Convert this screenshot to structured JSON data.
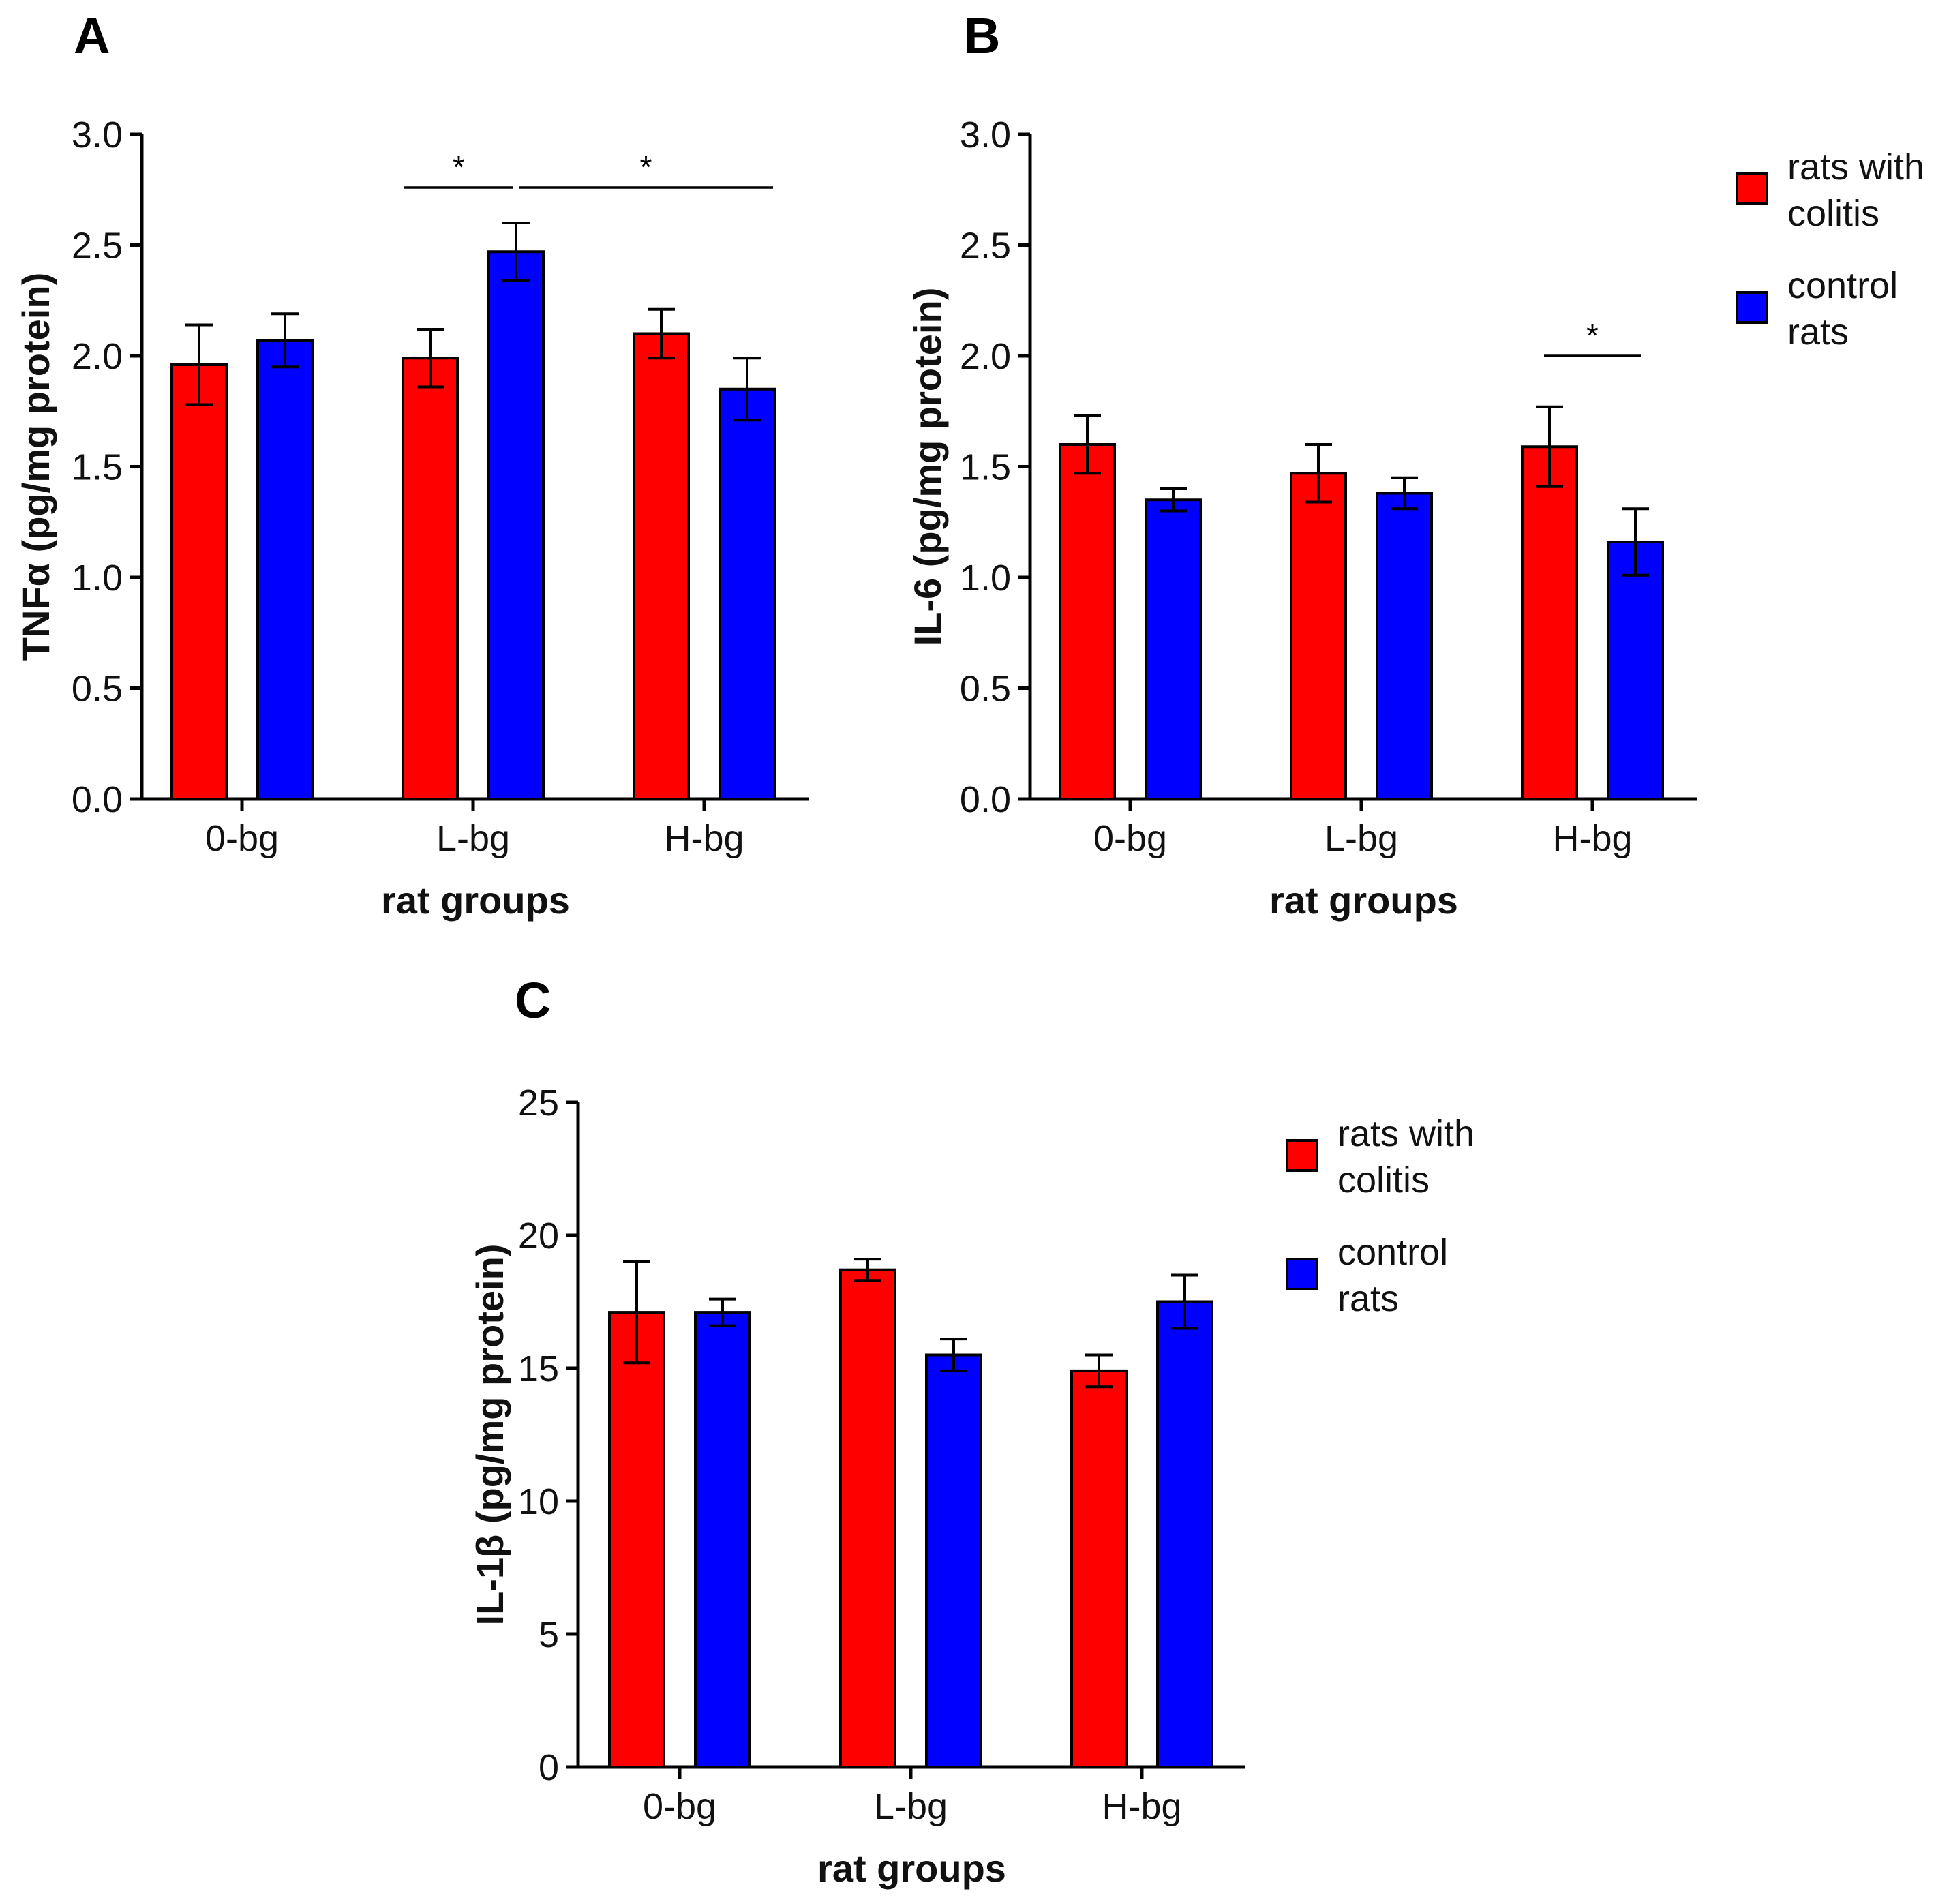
{
  "chart_data": [
    {
      "type": "bar",
      "panel": "A",
      "ylabel": "TNFα (pg/mg protein)",
      "xlabel": "rat groups",
      "ylim": [
        0,
        3.0
      ],
      "yticks": [
        "0.0",
        "0.5",
        "1.0",
        "1.5",
        "2.0",
        "2.5",
        "3.0"
      ],
      "categories": [
        "0-bg",
        "L-bg",
        "H-bg"
      ],
      "series": [
        {
          "name": "rats with colitis",
          "color": "#ff0000",
          "values": [
            1.96,
            1.99,
            2.1
          ],
          "errors": [
            0.18,
            0.13,
            0.11
          ]
        },
        {
          "name": "control rats",
          "color": "#0000ff",
          "values": [
            2.07,
            2.47,
            1.85
          ],
          "errors": [
            0.12,
            0.13,
            0.14
          ]
        }
      ],
      "significance": [
        {
          "from": [
            1,
            0
          ],
          "to": [
            1,
            1
          ],
          "y": 2.76,
          "label": "*"
        },
        {
          "from": [
            1,
            1
          ],
          "to": [
            2,
            1
          ],
          "y": 2.76,
          "label": "*"
        }
      ],
      "legend": false
    },
    {
      "type": "bar",
      "panel": "B",
      "ylabel": "IL-6 (pg/mg protein)",
      "xlabel": "rat groups",
      "ylim": [
        0,
        3.0
      ],
      "yticks": [
        "0.0",
        "0.5",
        "1.0",
        "1.5",
        "2.0",
        "2.5",
        "3.0"
      ],
      "categories": [
        "0-bg",
        "L-bg",
        "H-bg"
      ],
      "series": [
        {
          "name": "rats with colitis",
          "color": "#ff0000",
          "values": [
            1.6,
            1.47,
            1.59
          ],
          "errors": [
            0.13,
            0.13,
            0.18
          ]
        },
        {
          "name": "control rats",
          "color": "#0000ff",
          "values": [
            1.35,
            1.38,
            1.16
          ],
          "errors": [
            0.05,
            0.07,
            0.15
          ]
        }
      ],
      "significance": [
        {
          "from": [
            2,
            0
          ],
          "to": [
            2,
            1
          ],
          "y": 2.0,
          "label": "*"
        }
      ],
      "legend": true
    },
    {
      "type": "bar",
      "panel": "C",
      "ylabel": "IL-1β (pg/mg protein)",
      "xlabel": "rat groups",
      "ylim": [
        0,
        25
      ],
      "yticks": [
        "0",
        "5",
        "10",
        "15",
        "20",
        "25"
      ],
      "categories": [
        "0-bg",
        "L-bg",
        "H-bg"
      ],
      "series": [
        {
          "name": "rats with colitis",
          "color": "#ff0000",
          "values": [
            17.1,
            18.7,
            14.9
          ],
          "errors": [
            1.9,
            0.4,
            0.6
          ]
        },
        {
          "name": "control rats",
          "color": "#0000ff",
          "values": [
            17.1,
            15.5,
            17.5
          ],
          "errors": [
            0.5,
            0.6,
            1.0
          ]
        }
      ],
      "significance": [],
      "legend": true
    }
  ],
  "legend": {
    "items": [
      {
        "line1": "rats with",
        "line2": "colitis",
        "color": "#ff0000"
      },
      {
        "line1": "control",
        "line2": "rats",
        "color": "#0000ff"
      }
    ]
  }
}
